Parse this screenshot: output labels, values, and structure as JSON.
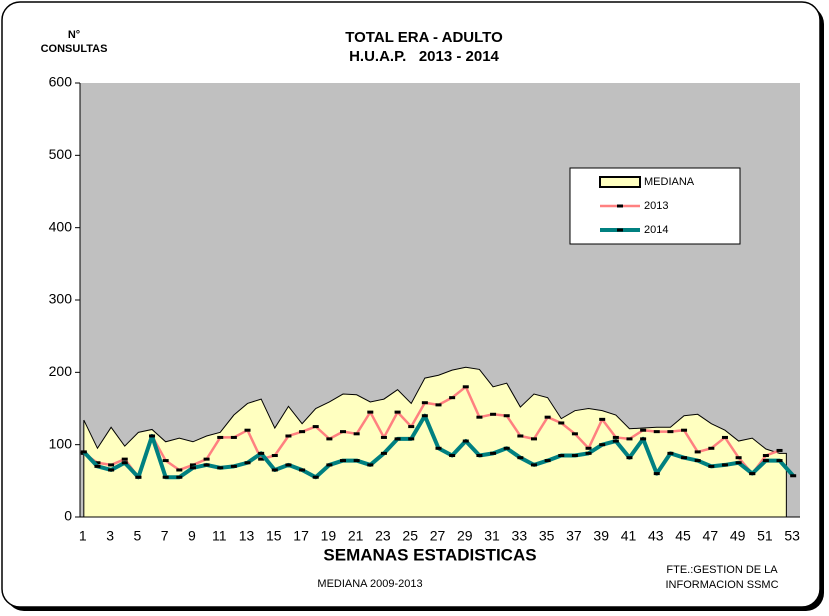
{
  "chart_data": {
    "type": "line",
    "title": "TOTAL ERA - ADULTO",
    "subtitle": "H.U.A.P.   2013 - 2014",
    "y_label": [
      "N°",
      "CONSULTAS"
    ],
    "x_label": "SEMANAS ESTADISTICAS",
    "note": "MEDIANA 2009-2013",
    "source": [
      "FTE.:GESTION DE LA",
      "INFORMACION SSMC"
    ],
    "categories": [
      1,
      null,
      3,
      null,
      5,
      null,
      7,
      null,
      9,
      null,
      11,
      null,
      13,
      null,
      15,
      null,
      17,
      null,
      19,
      null,
      21,
      null,
      23,
      null,
      25,
      null,
      27,
      null,
      29,
      null,
      31,
      null,
      33,
      null,
      35,
      null,
      37,
      null,
      39,
      null,
      41,
      null,
      43,
      null,
      45,
      null,
      47,
      null,
      49,
      null,
      51,
      null,
      53
    ],
    "ylim": [
      0,
      600
    ],
    "yticks": [
      0,
      100,
      200,
      300,
      400,
      500,
      600
    ],
    "plot_background": "#c0c0c0",
    "legend": "upper right",
    "series": [
      {
        "name": "MEDIANA",
        "kind": "area",
        "color": "#ffffc0",
        "values": [
          134,
          95,
          124,
          98,
          117,
          121,
          104,
          109,
          104,
          112,
          117,
          141,
          157,
          163,
          123,
          153,
          129,
          150,
          159,
          170,
          169,
          159,
          163,
          176,
          157,
          192,
          196,
          203,
          207,
          204,
          180,
          185,
          152,
          170,
          165,
          136,
          147,
          150,
          147,
          141,
          122,
          123,
          124,
          124,
          140,
          142,
          129,
          120,
          105,
          109,
          94,
          88,
          null
        ]
      },
      {
        "name": "2013",
        "kind": "line",
        "color": "#ff8080",
        "values": [
          88,
          75,
          72,
          80,
          55,
          112,
          78,
          65,
          72,
          80,
          110,
          110,
          120,
          80,
          85,
          112,
          118,
          125,
          108,
          118,
          115,
          145,
          110,
          145,
          125,
          158,
          155,
          165,
          180,
          138,
          142,
          140,
          112,
          108,
          138,
          130,
          115,
          95,
          135,
          110,
          108,
          120,
          118,
          118,
          120,
          90,
          95,
          110,
          82,
          60,
          85,
          92,
          null
        ]
      },
      {
        "name": "2014",
        "kind": "line",
        "color": "#008080",
        "values": [
          90,
          70,
          65,
          75,
          55,
          112,
          55,
          55,
          68,
          72,
          68,
          70,
          75,
          88,
          65,
          72,
          65,
          55,
          72,
          78,
          78,
          72,
          88,
          108,
          108,
          140,
          95,
          85,
          105,
          85,
          88,
          95,
          82,
          72,
          78,
          85,
          85,
          88,
          100,
          105,
          82,
          108,
          60,
          88,
          82,
          78,
          70,
          72,
          75,
          60,
          78,
          78,
          57
        ]
      }
    ]
  }
}
